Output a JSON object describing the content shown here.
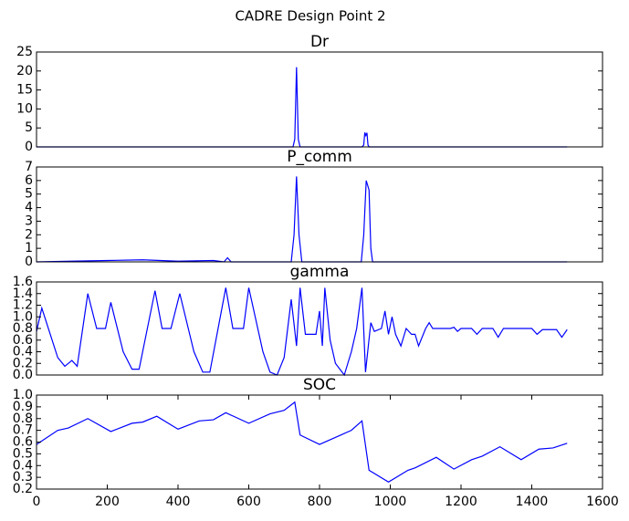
{
  "title": "CADRE Design Point 2",
  "chart_data": [
    {
      "type": "line",
      "title": "Dr",
      "color": "#0000ff",
      "x": [
        0,
        725,
        730,
        735,
        740,
        745,
        920,
        925,
        928,
        931,
        934,
        937,
        940,
        1500
      ],
      "values": [
        0,
        0,
        2,
        21,
        2,
        0,
        0,
        0.5,
        3.8,
        3,
        3.7,
        0.5,
        0,
        0
      ],
      "xlim": [
        0,
        1600
      ],
      "ylim": [
        0,
        25
      ],
      "yticks": [
        0,
        5,
        10,
        15,
        20,
        25
      ]
    },
    {
      "type": "line",
      "title": "P_comm",
      "color": "#0000ff",
      "x": [
        0,
        100,
        200,
        300,
        350,
        400,
        500,
        530,
        540,
        550,
        600,
        720,
        728,
        735,
        742,
        750,
        900,
        918,
        925,
        932,
        940,
        945,
        950,
        1500
      ],
      "values": [
        0,
        0.05,
        0.1,
        0.15,
        0.1,
        0.05,
        0.1,
        0,
        0.3,
        0,
        0,
        0,
        2,
        6.3,
        2,
        0,
        0,
        0,
        2,
        6.0,
        5.3,
        1,
        0,
        0
      ],
      "xlim": [
        0,
        1600
      ],
      "ylim": [
        0,
        7
      ],
      "yticks": [
        0,
        1,
        2,
        3,
        4,
        5,
        6,
        7
      ]
    },
    {
      "type": "line",
      "title": "gamma",
      "color": "#0000ff",
      "x": [
        0,
        15,
        60,
        80,
        100,
        115,
        145,
        170,
        195,
        210,
        245,
        270,
        290,
        335,
        355,
        380,
        405,
        445,
        470,
        490,
        535,
        555,
        585,
        600,
        640,
        660,
        680,
        700,
        720,
        735,
        745,
        760,
        790,
        800,
        808,
        815,
        830,
        845,
        870,
        880,
        890,
        905,
        920,
        930,
        945,
        955,
        975,
        985,
        995,
        1005,
        1015,
        1030,
        1045,
        1060,
        1070,
        1080,
        1100,
        1110,
        1120,
        1170,
        1180,
        1190,
        1200,
        1230,
        1245,
        1260,
        1290,
        1305,
        1320,
        1400,
        1415,
        1430,
        1470,
        1485,
        1500
      ],
      "values": [
        0.75,
        1.15,
        0.3,
        0.15,
        0.25,
        0.15,
        1.4,
        0.8,
        0.8,
        1.25,
        0.4,
        0.1,
        0.1,
        1.45,
        0.8,
        0.8,
        1.4,
        0.4,
        0.05,
        0.05,
        1.5,
        0.8,
        0.8,
        1.5,
        0.4,
        0.05,
        0,
        0.3,
        1.3,
        0.5,
        1.5,
        0.7,
        0.7,
        1.1,
        0.5,
        1.5,
        0.6,
        0.2,
        0,
        0.2,
        0.4,
        0.8,
        1.5,
        0.05,
        0.9,
        0.75,
        0.8,
        1.1,
        0.7,
        1.0,
        0.7,
        0.5,
        0.8,
        0.7,
        0.7,
        0.5,
        0.8,
        0.9,
        0.8,
        0.8,
        0.82,
        0.75,
        0.8,
        0.8,
        0.7,
        0.8,
        0.8,
        0.65,
        0.8,
        0.8,
        0.7,
        0.78,
        0.78,
        0.65,
        0.78
      ],
      "xlim": [
        0,
        1600
      ],
      "ylim": [
        0,
        1.6
      ],
      "yticks": [
        {
          "value": 0,
          "label": "0.0"
        },
        0.2,
        0.4,
        0.6,
        0.8,
        {
          "value": 1,
          "label": "1.0"
        },
        1.2,
        1.4,
        1.6
      ]
    },
    {
      "type": "line",
      "title": "SOC",
      "color": "#0000ff",
      "x": [
        0,
        60,
        90,
        145,
        210,
        270,
        300,
        340,
        400,
        460,
        500,
        535,
        600,
        660,
        700,
        730,
        745,
        800,
        860,
        890,
        920,
        940,
        995,
        1050,
        1070,
        1130,
        1180,
        1230,
        1260,
        1310,
        1370,
        1420,
        1460,
        1500
      ],
      "values": [
        0.58,
        0.7,
        0.72,
        0.8,
        0.69,
        0.76,
        0.77,
        0.82,
        0.71,
        0.78,
        0.79,
        0.85,
        0.76,
        0.84,
        0.87,
        0.94,
        0.66,
        0.58,
        0.66,
        0.7,
        0.78,
        0.36,
        0.26,
        0.36,
        0.38,
        0.47,
        0.37,
        0.45,
        0.48,
        0.56,
        0.45,
        0.54,
        0.55,
        0.59
      ],
      "xlim": [
        0,
        1600
      ],
      "ylim": [
        0.2,
        1.0
      ],
      "yticks": [
        0.2,
        0.3,
        0.4,
        0.5,
        0.6,
        0.7,
        0.8,
        0.9,
        {
          "value": 1,
          "label": "1.0"
        }
      ],
      "xticks": [
        0,
        200,
        400,
        600,
        800,
        1000,
        1200,
        1400,
        1600
      ]
    }
  ]
}
